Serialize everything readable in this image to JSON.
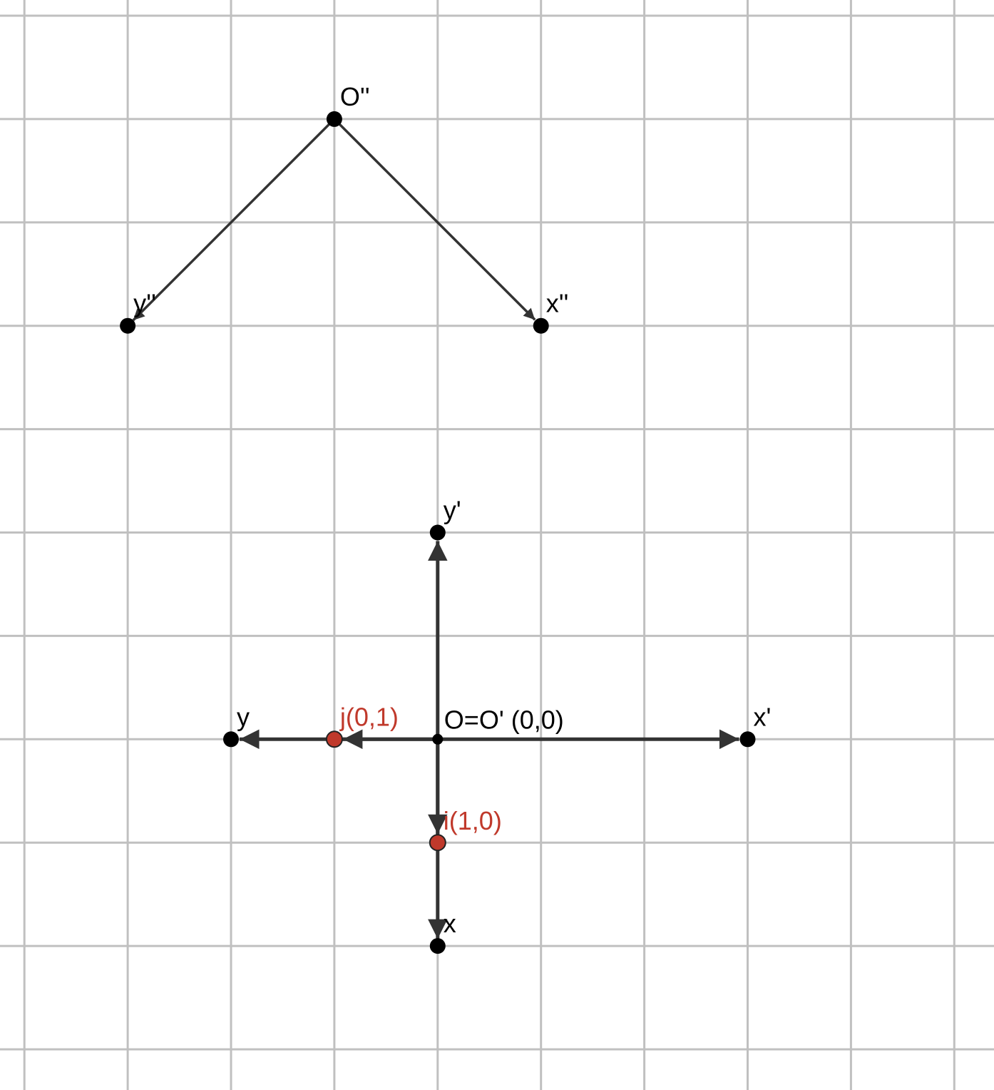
{
  "colors": {
    "background": "#ffffff",
    "grid": "#c0c0c0",
    "stroke": "#333333",
    "point": "#000000",
    "accent": "#c0392b"
  },
  "points": {
    "O2": {
      "label": "O''",
      "x": 1,
      "y": 6
    },
    "x2": {
      "label": "x''",
      "x": 3,
      "y": 4
    },
    "y2": {
      "label": "y''",
      "x": -1,
      "y": 4
    },
    "origin": {
      "label": "O=O' (0,0)",
      "x": 2,
      "y": 0
    },
    "x1": {
      "label": "x'",
      "x": 5,
      "y": 0
    },
    "y1": {
      "label": "y'",
      "x": 2,
      "y": 2
    },
    "y": {
      "label": "y",
      "x": 0,
      "y": 0
    },
    "xdown": {
      "label": "x",
      "x": 2,
      "y": -2
    },
    "j": {
      "label": "j(0,1)",
      "x": 1,
      "y": 0
    },
    "i": {
      "label": "i(1,0)",
      "x": 2,
      "y": -1
    }
  }
}
